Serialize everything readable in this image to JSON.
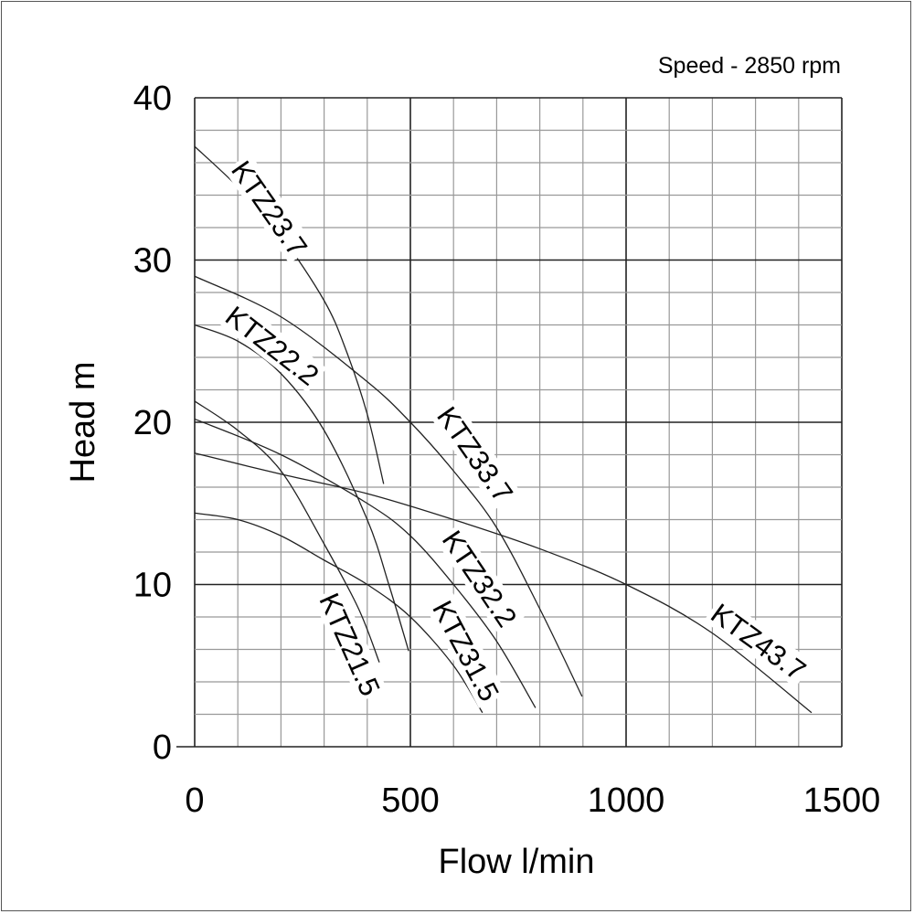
{
  "chart_data": {
    "type": "line",
    "annotation": "Speed - 2850 rpm",
    "xlabel": "Flow l/min",
    "ylabel": "Head m",
    "xlim": [
      0,
      1500
    ],
    "ylim": [
      0,
      40
    ],
    "xticks": [
      "0",
      "500",
      "1000",
      "1500"
    ],
    "yticks": [
      "0",
      "10",
      "20",
      "30",
      "40"
    ],
    "grid": true,
    "legend": "none (inline curve labels)",
    "series": [
      {
        "name": "KTZ23.7",
        "x": [
          0,
          100,
          200,
          300,
          350,
          400,
          438
        ],
        "y": [
          37,
          34.5,
          31.5,
          27.5,
          24.5,
          20.5,
          16.2
        ]
      },
      {
        "name": "KTZ22.2",
        "x": [
          0,
          100,
          200,
          300,
          400,
          450,
          496
        ],
        "y": [
          26,
          25,
          23,
          19.5,
          14,
          10,
          5.9
        ]
      },
      {
        "name": "KTZ33.7",
        "x": [
          0,
          200,
          400,
          500,
          600,
          700,
          800,
          898
        ],
        "y": [
          29,
          26.5,
          22.5,
          20,
          17,
          13.5,
          8.5,
          3.1
        ]
      },
      {
        "name": "KTZ21.5",
        "x": [
          0,
          100,
          200,
          300,
          380,
          428
        ],
        "y": [
          21.3,
          19.5,
          17,
          12.5,
          8.5,
          5.2
        ]
      },
      {
        "name": "KTZ32.2",
        "x": [
          0,
          200,
          400,
          500,
          600,
          700,
          790
        ],
        "y": [
          20.2,
          18,
          15,
          13,
          10,
          6.5,
          2.4
        ]
      },
      {
        "name": "KTZ31.5",
        "x": [
          0,
          100,
          200,
          300,
          400,
          500,
          600,
          667
        ],
        "y": [
          14.4,
          14,
          13,
          11.5,
          10,
          8,
          5,
          2.1
        ]
      },
      {
        "name": "KTZ43.7",
        "x": [
          0,
          200,
          400,
          600,
          800,
          1000,
          1200,
          1430
        ],
        "y": [
          18.1,
          16.8,
          15.6,
          14,
          12.2,
          10,
          7,
          2.1
        ]
      }
    ]
  }
}
